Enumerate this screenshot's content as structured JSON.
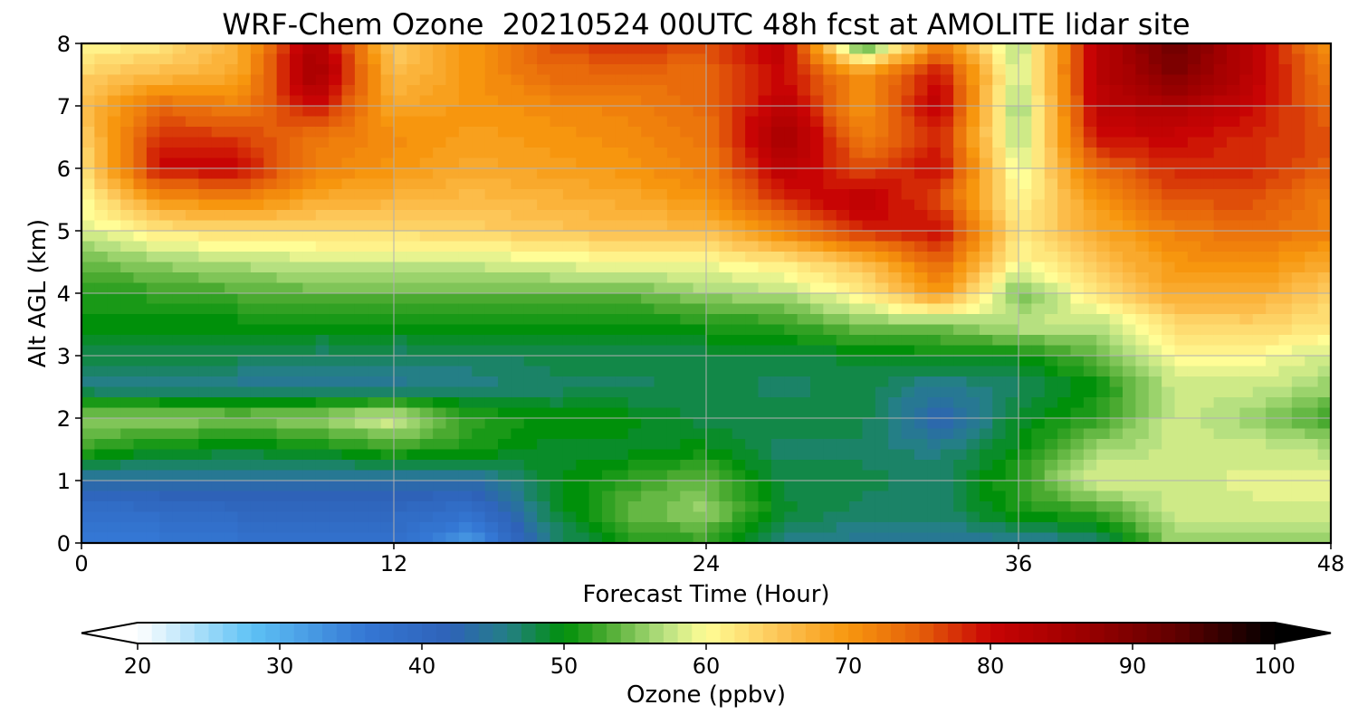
{
  "chart_data": {
    "type": "heatmap",
    "title": "WRF-Chem Ozone  20210524 00UTC 48h fcst at AMOLITE lidar site",
    "xlabel": "Forecast Time (Hour)",
    "ylabel": "Alt AGL (km)",
    "xlim": [
      0,
      48
    ],
    "ylim": [
      0,
      8
    ],
    "x_ticks": [
      "0",
      "12",
      "24",
      "36",
      "48"
    ],
    "y_ticks": [
      "0",
      "1",
      "2",
      "3",
      "4",
      "5",
      "6",
      "7",
      "8"
    ],
    "grid": true,
    "colorbar": {
      "label": "Ozone  (ppbv)",
      "range": [
        20,
        100
      ],
      "extend": "both",
      "tick_labels": [
        "20",
        "30",
        "40",
        "50",
        "60",
        "70",
        "80",
        "90",
        "100"
      ],
      "color_stops": [
        {
          "v": 20,
          "c": "#ffffff"
        },
        {
          "v": 28,
          "c": "#5ec2f5"
        },
        {
          "v": 36,
          "c": "#3477d4"
        },
        {
          "v": 42,
          "c": "#2e62b8"
        },
        {
          "v": 46,
          "c": "#247f86"
        },
        {
          "v": 50,
          "c": "#00900a"
        },
        {
          "v": 53,
          "c": "#4aaa30"
        },
        {
          "v": 57,
          "c": "#b6e080"
        },
        {
          "v": 60,
          "c": "#fffd96"
        },
        {
          "v": 65,
          "c": "#fdc658"
        },
        {
          "v": 70,
          "c": "#f7960e"
        },
        {
          "v": 75,
          "c": "#e5600a"
        },
        {
          "v": 80,
          "c": "#c80404"
        },
        {
          "v": 86,
          "c": "#a00000"
        },
        {
          "v": 93,
          "c": "#620000"
        },
        {
          "v": 100,
          "c": "#000000"
        }
      ]
    },
    "hours": [
      0,
      3,
      6,
      9,
      12,
      15,
      18,
      21,
      24,
      27,
      30,
      33,
      36,
      39,
      42,
      45,
      48
    ],
    "altitudes_km": [
      0,
      0.5,
      1,
      1.5,
      2,
      2.5,
      3,
      3.5,
      4,
      4.5,
      5,
      5.5,
      6,
      6.5,
      7,
      7.5,
      8
    ],
    "ozone_ppbv": [
      [
        36,
        36,
        37,
        37,
        38,
        32,
        46,
        51,
        52,
        46,
        45,
        44,
        45,
        46,
        56,
        56,
        56
      ],
      [
        38,
        39,
        40,
        40,
        40,
        38,
        48,
        54,
        56,
        49,
        47,
        47,
        51,
        52,
        58,
        58,
        58
      ],
      [
        44,
        44,
        44,
        44,
        44,
        44,
        49,
        52,
        54,
        48,
        48,
        47,
        52,
        59,
        58,
        59,
        59
      ],
      [
        52,
        50,
        49,
        50,
        52,
        51,
        49,
        49,
        50,
        47,
        47,
        46,
        50,
        56,
        58,
        58,
        57
      ],
      [
        56,
        56,
        55,
        56,
        59,
        52,
        50,
        50,
        48,
        48,
        48,
        42,
        49,
        52,
        58,
        56,
        52
      ],
      [
        46,
        45,
        45,
        45,
        45,
        46,
        47,
        47,
        48,
        47,
        48,
        45,
        47,
        50,
        58,
        58,
        56
      ],
      [
        48,
        48,
        48,
        47,
        47,
        47,
        48,
        48,
        48,
        48,
        49,
        50,
        50,
        54,
        60,
        60,
        58
      ],
      [
        50,
        50,
        50,
        50,
        50,
        50,
        50,
        50,
        51,
        52,
        55,
        55,
        58,
        57,
        63,
        64,
        62
      ],
      [
        51,
        52,
        53,
        54,
        54,
        54,
        54,
        54,
        56,
        57,
        61,
        70,
        54,
        62,
        68,
        68,
        64
      ],
      [
        54,
        56,
        57,
        58,
        58,
        58,
        59,
        60,
        60,
        62,
        66,
        75,
        60,
        65,
        70,
        71,
        68
      ],
      [
        58,
        62,
        63,
        63,
        63,
        64,
        65,
        66,
        66,
        72,
        78,
        80,
        62,
        68,
        72,
        74,
        72
      ],
      [
        60,
        70,
        72,
        68,
        67,
        66,
        67,
        68,
        70,
        78,
        82,
        76,
        60,
        70,
        76,
        76,
        72
      ],
      [
        62,
        80,
        80,
        72,
        70,
        68,
        69,
        70,
        72,
        82,
        76,
        80,
        58,
        74,
        78,
        78,
        75
      ],
      [
        64,
        78,
        77,
        73,
        71,
        69,
        70,
        71,
        73,
        86,
        72,
        78,
        56,
        80,
        80,
        78,
        76
      ],
      [
        66,
        74,
        72,
        80,
        68,
        70,
        71,
        72,
        74,
        82,
        70,
        82,
        55,
        82,
        84,
        80,
        74
      ],
      [
        64,
        66,
        68,
        86,
        66,
        70,
        74,
        74,
        74,
        80,
        70,
        80,
        57,
        82,
        90,
        82,
        72
      ],
      [
        60,
        62,
        67,
        84,
        64,
        70,
        76,
        78,
        76,
        82,
        50,
        72,
        56,
        82,
        92,
        82,
        70
      ]
    ]
  }
}
